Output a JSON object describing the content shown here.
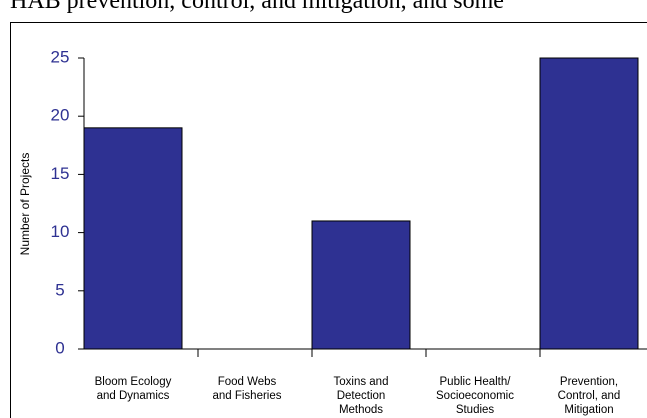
{
  "page_text": "HAB prevention, control, and mitigation, and some",
  "chart_data": {
    "type": "bar",
    "ylabel": "Number of Projects",
    "categories": [
      "Bloom Ecology\nand Dynamics",
      "Food Webs\nand Fisheries",
      "Toxins and\nDetection\nMethods",
      "Public Health/\nSocioeconomic\nStudies",
      "Prevention,\nControl, and\nMitigation"
    ],
    "values": [
      19,
      0,
      11,
      0,
      25
    ],
    "color": "#2e3192",
    "ylim": [
      0,
      25
    ],
    "yticks": [
      0,
      5,
      10,
      15,
      20,
      25
    ],
    "grid": false
  }
}
